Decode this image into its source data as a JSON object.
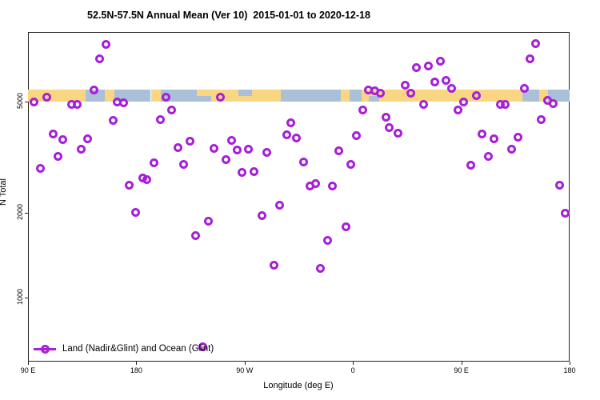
{
  "title": "52.5N-57.5N Annual Mean (Ver 10)  2015-01-01 to 2020-12-18",
  "legend": {
    "label": "Land (Nadir&Glint) and Ocean (Glint)"
  },
  "axes": {
    "y": {
      "title": "N Total",
      "scale": "log",
      "ticks": [
        {
          "value": 1000,
          "label": "1000"
        },
        {
          "value": 2000,
          "label": "2000"
        },
        {
          "value": 5000,
          "label": "5000"
        }
      ]
    },
    "x": {
      "title": "Longitude (deg E)",
      "ticks": [
        {
          "deg": 0,
          "label": "90 E"
        },
        {
          "deg": 90,
          "label": "180"
        },
        {
          "deg": 180,
          "label": "90 W"
        },
        {
          "deg": 270,
          "label": "0"
        },
        {
          "deg": 360,
          "label": "90 E"
        },
        {
          "deg": 450,
          "label": "180"
        }
      ]
    }
  },
  "colors": {
    "point": "#A620D8",
    "land": "#FBD682",
    "ocean": "#AABFD8",
    "axis": "#262626"
  },
  "chart_data": {
    "type": "scatter",
    "title": "52.5N-57.5N Annual Mean (Ver 10)  2015-01-01 to 2020-12-18",
    "xlabel": "Longitude (deg E)",
    "ylabel": "N Total",
    "x_definition": "degrees eastward along axis from left edge; 0 = 90E, 90 = 180, 180 = 90W, 270 = 0, 360 = 90E, 450 = 180",
    "x_range_deg": [
      0,
      450
    ],
    "y_range": [
      560,
      9000
    ],
    "y_scale": "log10",
    "grid": false,
    "legend_position": "bottom-left",
    "series_name": "Land (Nadir&Glint) and Ocean (Glint)",
    "points": [
      [
        4.7,
        4970
      ],
      [
        10.6,
        2890
      ],
      [
        15.3,
        5200
      ],
      [
        20.6,
        3840
      ],
      [
        24.6,
        3190
      ],
      [
        29.2,
        3670
      ],
      [
        35.9,
        4900
      ],
      [
        40.6,
        4900
      ],
      [
        43.9,
        3380
      ],
      [
        49.2,
        3690
      ],
      [
        54.5,
        5500
      ],
      [
        59.2,
        7100
      ],
      [
        64.5,
        8000
      ],
      [
        70.5,
        4280
      ],
      [
        74.4,
        5000
      ],
      [
        79.1,
        4950
      ],
      [
        83.8,
        2520
      ],
      [
        89.7,
        2010
      ],
      [
        95.1,
        2670
      ],
      [
        99.0,
        2640
      ],
      [
        104.4,
        3030
      ],
      [
        109.7,
        4300
      ],
      [
        114.3,
        5180
      ],
      [
        119.0,
        4680
      ],
      [
        124.3,
        3430
      ],
      [
        129.0,
        2980
      ],
      [
        134.3,
        3620
      ],
      [
        138.9,
        1660
      ],
      [
        144.9,
        665
      ],
      [
        149.6,
        1870
      ],
      [
        154.2,
        3400
      ],
      [
        159.5,
        5200
      ],
      [
        164.2,
        3100
      ],
      [
        168.8,
        3640
      ],
      [
        173.5,
        3360
      ],
      [
        178.1,
        2790
      ],
      [
        182.8,
        3380
      ],
      [
        187.5,
        2810
      ],
      [
        194.1,
        1960
      ],
      [
        198.1,
        3300
      ],
      [
        204.1,
        1300
      ],
      [
        208.7,
        2140
      ],
      [
        214.7,
        3810
      ],
      [
        218.0,
        4200
      ],
      [
        222.7,
        3710
      ],
      [
        228.7,
        3050
      ],
      [
        234.0,
        2490
      ],
      [
        238.6,
        2540
      ],
      [
        242.6,
        1270
      ],
      [
        248.6,
        1600
      ],
      [
        252.6,
        2490
      ],
      [
        257.9,
        3340
      ],
      [
        263.9,
        1790
      ],
      [
        267.9,
        2980
      ],
      [
        272.5,
        3790
      ],
      [
        277.9,
        4680
      ],
      [
        282.5,
        5500
      ],
      [
        287.8,
        5460
      ],
      [
        292.5,
        5360
      ],
      [
        297.1,
        4400
      ],
      [
        299.8,
        4030
      ],
      [
        307.1,
        3860
      ],
      [
        313.1,
        5710
      ],
      [
        317.7,
        5360
      ],
      [
        322.4,
        6630
      ],
      [
        328.4,
        4900
      ],
      [
        332.4,
        6720
      ],
      [
        337.7,
        5860
      ],
      [
        342.3,
        6990
      ],
      [
        347.6,
        5940
      ],
      [
        351.6,
        5560
      ],
      [
        357.0,
        4680
      ],
      [
        361.6,
        5000
      ],
      [
        367.6,
        2960
      ],
      [
        372.2,
        5240
      ],
      [
        376.9,
        3840
      ],
      [
        382.2,
        3190
      ],
      [
        386.9,
        3690
      ],
      [
        392.2,
        4900
      ],
      [
        396.2,
        4900
      ],
      [
        401.5,
        3380
      ],
      [
        406.8,
        3740
      ],
      [
        412.1,
        5560
      ],
      [
        416.8,
        7100
      ],
      [
        421.4,
        8060
      ],
      [
        426.7,
        4300
      ],
      [
        431.4,
        5040
      ],
      [
        436.1,
        4930
      ],
      [
        441.4,
        2520
      ],
      [
        446.1,
        2000
      ]
    ],
    "map_band": {
      "description": "land/ocean strip for 52.5N-57.5N drawn across the plot near y=5300",
      "segments": [
        {
          "from": 0,
          "to": 48,
          "type": "land"
        },
        {
          "from": 48,
          "to": 64,
          "type": "ocean"
        },
        {
          "from": 64,
          "to": 72,
          "type": "land"
        },
        {
          "from": 72,
          "to": 102,
          "type": "ocean"
        },
        {
          "from": 102,
          "to": 110,
          "type": "land"
        },
        {
          "from": 110,
          "to": 152,
          "type": "ocean"
        },
        {
          "from": 152,
          "to": 210,
          "type": "land"
        },
        {
          "from": 210,
          "to": 260,
          "type": "ocean"
        },
        {
          "from": 260,
          "to": 267,
          "type": "land"
        },
        {
          "from": 267,
          "to": 277,
          "type": "ocean"
        },
        {
          "from": 277,
          "to": 411,
          "type": "land"
        },
        {
          "from": 411,
          "to": 425,
          "type": "ocean"
        },
        {
          "from": 425,
          "to": 432,
          "type": "land"
        },
        {
          "from": 432,
          "to": 450,
          "type": "ocean"
        },
        {
          "from": 140,
          "to": 152,
          "type": "land",
          "half": "top"
        },
        {
          "from": 175,
          "to": 186,
          "type": "ocean",
          "half": "top"
        },
        {
          "from": 283,
          "to": 292,
          "type": "ocean",
          "half": "bottom"
        }
      ]
    }
  }
}
